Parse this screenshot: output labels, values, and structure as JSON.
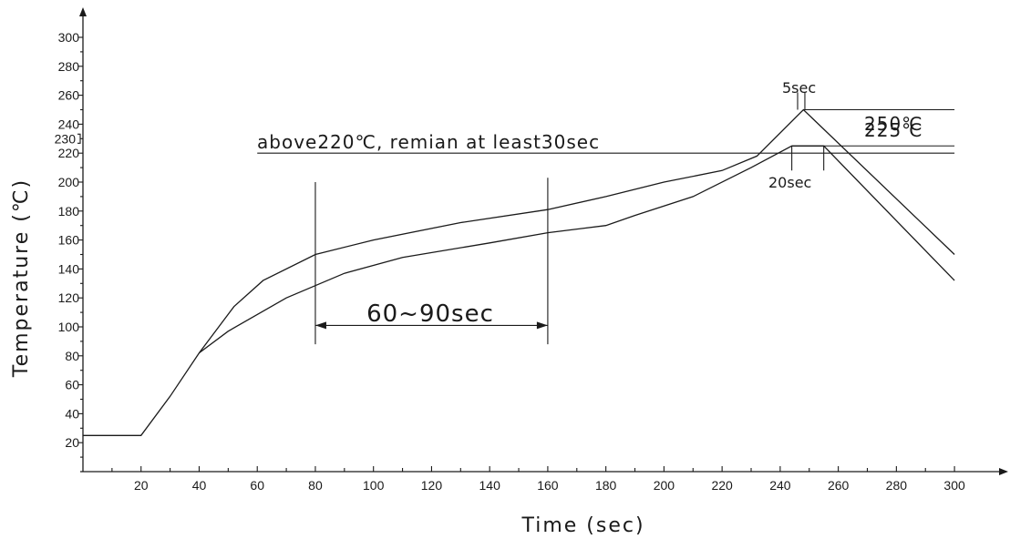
{
  "chart_data": {
    "type": "line",
    "title": "",
    "xlabel": "Time (sec)",
    "ylabel": "Temperature (℃)",
    "xlim": [
      0,
      300
    ],
    "ylim": [
      0,
      300
    ],
    "x_ticks": [
      20,
      40,
      60,
      80,
      100,
      120,
      140,
      160,
      180,
      200,
      220,
      240,
      260,
      280,
      300
    ],
    "y_ticks": [
      20,
      40,
      60,
      80,
      100,
      120,
      140,
      160,
      180,
      200,
      220,
      240,
      260,
      280,
      300
    ],
    "y_extra_tick": 230,
    "grid": false,
    "series": [
      {
        "points": [
          [
            0,
            25
          ],
          [
            20,
            25
          ],
          [
            30,
            52
          ],
          [
            40,
            82
          ],
          [
            52,
            114
          ],
          [
            62,
            132
          ],
          [
            80,
            150
          ],
          [
            100,
            160
          ],
          [
            130,
            172
          ],
          [
            160,
            181
          ],
          [
            180,
            190
          ],
          [
            200,
            200
          ],
          [
            220,
            208
          ],
          [
            232,
            218
          ],
          [
            248,
            250
          ],
          [
            300,
            150
          ]
        ]
      },
      {
        "points": [
          [
            40,
            82
          ],
          [
            50,
            97
          ],
          [
            70,
            120
          ],
          [
            90,
            137
          ],
          [
            110,
            148
          ],
          [
            140,
            158
          ],
          [
            160,
            165
          ],
          [
            180,
            170
          ],
          [
            190,
            177
          ],
          [
            210,
            190
          ],
          [
            230,
            210
          ],
          [
            244,
            225
          ],
          [
            255,
            225
          ],
          [
            300,
            132
          ]
        ]
      }
    ],
    "annotations": {
      "above_220": "above220℃, remian at least30sec",
      "soak_window": "60~90sec",
      "peak_label": "250℃",
      "plateau_label": "225℃",
      "peak_time": "5sec",
      "plateau_time": "20sec"
    }
  }
}
